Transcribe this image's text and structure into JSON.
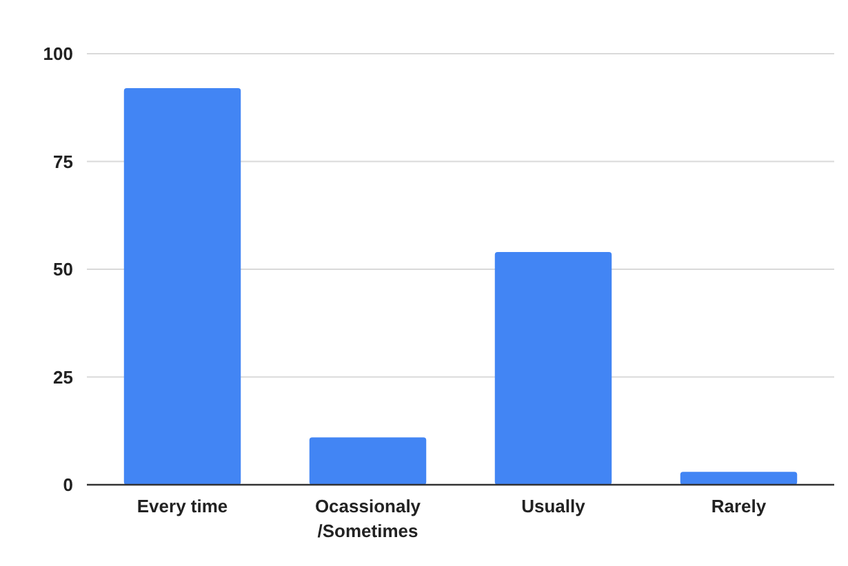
{
  "chart_data": {
    "type": "bar",
    "categories": [
      "Every time",
      "Ocassionaly /Sometimes",
      "Usually",
      "Rarely"
    ],
    "values": [
      92,
      11,
      54,
      3
    ],
    "color": "#4285f4",
    "ylim": [
      0,
      100
    ],
    "yticks": [
      0,
      25,
      50,
      75,
      100
    ],
    "grid": "y"
  }
}
